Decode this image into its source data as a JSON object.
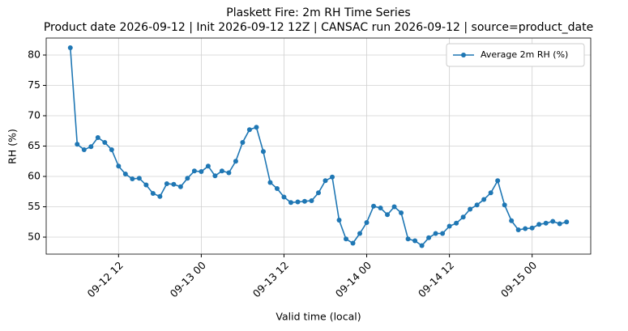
{
  "chart_data": {
    "type": "line",
    "title": "Plaskett Fire: 2m RH Time Series",
    "subtitle": "Product date 2026-09-12 | Init 2026-09-12 12Z | CANSAC run 2026-09-12 | source=product_date",
    "x_label": "Valid time (local)",
    "y_label": "RH (%)",
    "x": [
      "09-12 05",
      "09-12 06",
      "09-12 07",
      "09-12 08",
      "09-12 09",
      "09-12 10",
      "09-12 11",
      "09-12 12",
      "09-12 13",
      "09-12 14",
      "09-12 15",
      "09-12 16",
      "09-12 17",
      "09-12 18",
      "09-12 19",
      "09-12 20",
      "09-12 21",
      "09-12 22",
      "09-12 23",
      "09-13 00",
      "09-13 01",
      "09-13 02",
      "09-13 03",
      "09-13 04",
      "09-13 05",
      "09-13 06",
      "09-13 07",
      "09-13 08",
      "09-13 09",
      "09-13 10",
      "09-13 11",
      "09-13 12",
      "09-13 13",
      "09-13 14",
      "09-13 15",
      "09-13 16",
      "09-13 17",
      "09-13 18",
      "09-13 19",
      "09-13 20",
      "09-13 21",
      "09-13 22",
      "09-13 23",
      "09-14 00",
      "09-14 01",
      "09-14 02",
      "09-14 03",
      "09-14 04",
      "09-14 05",
      "09-14 06",
      "09-14 07",
      "09-14 08",
      "09-14 09",
      "09-14 10",
      "09-14 11",
      "09-14 12",
      "09-14 13",
      "09-14 14",
      "09-14 15",
      "09-14 16",
      "09-14 17",
      "09-14 18",
      "09-14 19",
      "09-14 20",
      "09-14 21",
      "09-14 22",
      "09-14 23",
      "09-15 00",
      "09-15 01",
      "09-15 02",
      "09-15 03",
      "09-15 04",
      "09-15 05"
    ],
    "series": [
      {
        "name": "Average 2m RH (%)",
        "color": "#1f77b4",
        "values": [
          81.2,
          65.3,
          64.4,
          64.9,
          66.4,
          65.6,
          64.4,
          61.7,
          60.4,
          59.6,
          59.7,
          58.6,
          57.2,
          56.7,
          58.8,
          58.7,
          58.3,
          59.7,
          60.9,
          60.8,
          61.7,
          60.1,
          60.9,
          60.6,
          62.5,
          65.6,
          67.7,
          68.1,
          64.1,
          59.0,
          58.0,
          56.6,
          55.7,
          55.8,
          55.9,
          56.0,
          57.3,
          59.3,
          59.9,
          52.8,
          49.7,
          49.0,
          50.6,
          52.4,
          55.1,
          54.8,
          53.7,
          55.0,
          54.0,
          49.7,
          49.4,
          48.6,
          49.9,
          50.6,
          50.6,
          51.8,
          52.3,
          53.3,
          54.6,
          55.3,
          56.2,
          57.3,
          59.3,
          55.3,
          52.7,
          51.2,
          51.4,
          51.5,
          52.1,
          52.3,
          52.6,
          52.2,
          52.5
        ]
      }
    ],
    "xlim": [
      "09-12 01:30",
      "09-15 08:30"
    ],
    "xticks": [
      "09-12 12",
      "09-13 00",
      "09-13 12",
      "09-14 00",
      "09-14 12",
      "09-15 00"
    ],
    "ylim": [
      47.2,
      82.8
    ],
    "yticks": [
      50,
      55,
      60,
      65,
      70,
      75,
      80
    ],
    "grid": true,
    "legend": "upper right"
  }
}
